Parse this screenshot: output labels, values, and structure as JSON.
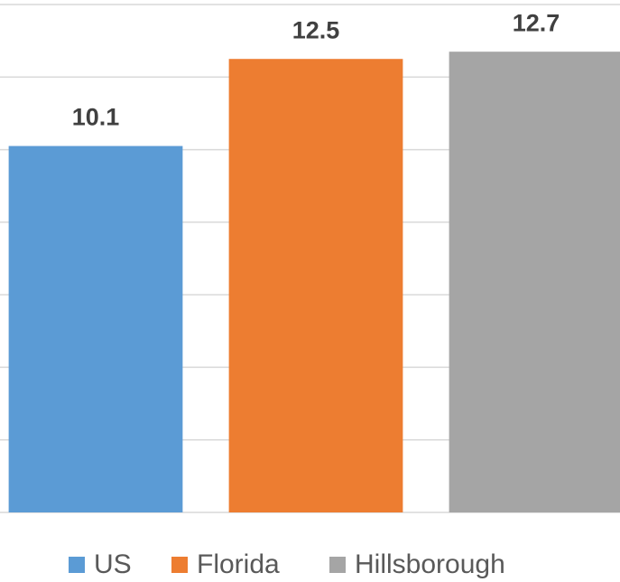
{
  "chart_data": {
    "type": "bar",
    "categories": [
      "US",
      "Florida",
      "Hillsborough"
    ],
    "values": [
      10.1,
      12.5,
      12.7
    ],
    "colors": [
      "#5b9bd5",
      "#ed7d31",
      "#a5a5a5"
    ],
    "ylim": [
      0,
      14
    ],
    "yticks": [
      0,
      2,
      4,
      6,
      8,
      10,
      12,
      14
    ],
    "grid": true
  }
}
